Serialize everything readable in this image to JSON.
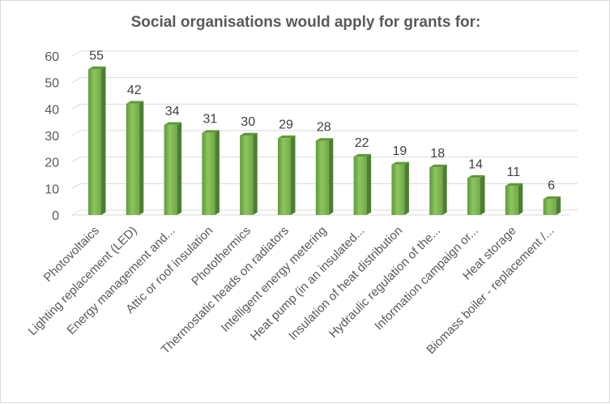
{
  "chart_data": {
    "type": "bar",
    "title": "Social organisations would apply for grants for:",
    "categories": [
      "Photovoltaics",
      "Lighting replacement (LED)",
      "Energy management and...",
      "Attic or roof insulation",
      "Photothermics",
      "Thermostatic heads on radiators",
      "Intelligent energy metering",
      "Heat pump (in an insulated...",
      "Insulation of heat distribution",
      "Hydraulic regulation of the...",
      "Information campaign or...",
      "Heat storage",
      "Biomass boiler - replacement /..."
    ],
    "values": [
      55,
      42,
      34,
      31,
      30,
      29,
      28,
      22,
      19,
      18,
      14,
      11,
      6
    ],
    "ylim": [
      0,
      60
    ],
    "yticks": [
      0,
      10,
      20,
      30,
      40,
      50,
      60
    ],
    "grid": true,
    "legend": "none",
    "colors": {
      "bar_front": "#70ad47",
      "bar_front_light": "#8fc55f",
      "bar_side": "#4e7e31",
      "bar_top": "#5f9a3a",
      "grid": "#d9d9d9"
    }
  }
}
